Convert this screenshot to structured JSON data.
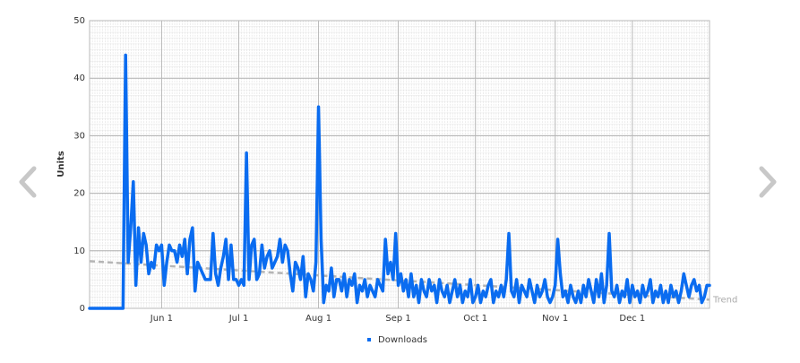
{
  "chart_data": {
    "type": "line",
    "y_label": "Units",
    "categories": [
      null,
      null,
      null,
      null,
      null,
      null,
      null,
      null,
      null,
      null,
      null,
      null,
      null,
      null,
      null,
      null,
      null,
      null,
      null,
      null,
      null,
      null,
      null,
      null,
      null,
      null,
      null,
      null,
      "Jun 1",
      null,
      null,
      null,
      null,
      null,
      null,
      null,
      null,
      null,
      null,
      null,
      null,
      null,
      null,
      null,
      null,
      null,
      null,
      null,
      null,
      null,
      null,
      null,
      null,
      null,
      null,
      null,
      null,
      null,
      "Jul 1",
      null,
      null,
      null,
      null,
      null,
      null,
      null,
      null,
      null,
      null,
      null,
      null,
      null,
      null,
      null,
      null,
      null,
      null,
      null,
      null,
      null,
      null,
      null,
      null,
      null,
      null,
      null,
      null,
      null,
      null,
      "Aug 1",
      null,
      null,
      null,
      null,
      null,
      null,
      null,
      null,
      null,
      null,
      null,
      null,
      null,
      null,
      null,
      null,
      null,
      null,
      null,
      null,
      null,
      null,
      null,
      null,
      null,
      null,
      null,
      null,
      null,
      null,
      "Sep 1",
      null,
      null,
      null,
      null,
      null,
      null,
      null,
      null,
      null,
      null,
      null,
      null,
      null,
      null,
      null,
      null,
      null,
      null,
      null,
      null,
      null,
      null,
      null,
      null,
      null,
      null,
      null,
      null,
      null,
      "Oct 1",
      null,
      null,
      null,
      null,
      null,
      null,
      null,
      null,
      null,
      null,
      null,
      null,
      null,
      null,
      null,
      null,
      null,
      null,
      null,
      null,
      null,
      null,
      null,
      null,
      null,
      null,
      null,
      null,
      null,
      null,
      "Nov 1",
      null,
      null,
      null,
      null,
      null,
      null,
      null,
      null,
      null,
      null,
      null,
      null,
      null,
      null,
      null,
      null,
      null,
      null,
      null,
      null,
      null,
      null,
      null,
      null,
      null,
      null,
      null,
      null,
      null,
      "Dec 1",
      null,
      null,
      null,
      null,
      null,
      null,
      null,
      null,
      null,
      null,
      null,
      null,
      null,
      null,
      null,
      null,
      null,
      null,
      null,
      null,
      null,
      null,
      null,
      null,
      null,
      null,
      null,
      null,
      null,
      null
    ],
    "series": [
      {
        "name": "Downloads",
        "color": "#0a6cf0",
        "values": [
          0,
          0,
          0,
          0,
          0,
          0,
          0,
          0,
          0,
          0,
          0,
          0,
          0,
          0,
          44,
          8,
          14,
          22,
          4,
          14,
          8,
          13,
          11,
          6,
          8,
          7,
          11,
          10,
          11,
          4,
          8,
          11,
          10,
          10,
          8,
          11,
          9,
          12,
          6,
          12,
          14,
          3,
          8,
          7,
          6,
          5,
          5,
          5,
          13,
          6,
          4,
          7,
          9,
          12,
          5,
          11,
          5,
          5,
          4,
          5,
          4,
          27,
          5,
          11,
          12,
          5,
          6,
          11,
          7,
          9,
          10,
          7,
          8,
          9,
          12,
          8,
          11,
          10,
          6,
          3,
          8,
          7,
          5,
          9,
          2,
          6,
          5,
          3,
          8,
          35,
          12,
          1,
          4,
          3,
          7,
          2,
          5,
          5,
          3,
          6,
          2,
          5,
          4,
          6,
          1,
          4,
          3,
          5,
          2,
          4,
          3,
          2,
          5,
          4,
          3,
          12,
          6,
          8,
          5,
          13,
          4,
          6,
          3,
          5,
          2,
          6,
          2,
          4,
          1,
          5,
          3,
          2,
          5,
          3,
          4,
          1,
          5,
          3,
          2,
          4,
          1,
          3,
          5,
          2,
          4,
          1,
          3,
          2,
          5,
          1,
          2,
          4,
          1,
          3,
          2,
          4,
          5,
          1,
          3,
          2,
          4,
          2,
          5,
          13,
          3,
          2,
          5,
          1,
          4,
          3,
          2,
          5,
          3,
          1,
          4,
          2,
          3,
          5,
          2,
          1,
          2,
          4,
          12,
          6,
          2,
          3,
          1,
          4,
          2,
          1,
          3,
          1,
          4,
          2,
          5,
          3,
          1,
          5,
          2,
          6,
          1,
          4,
          13,
          3,
          2,
          4,
          1,
          3,
          2,
          5,
          1,
          4,
          2,
          3,
          1,
          4,
          2,
          3,
          5,
          1,
          3,
          2,
          4,
          1,
          3,
          1,
          4,
          2,
          3,
          1,
          3,
          6,
          4,
          2,
          4,
          5,
          3,
          4,
          1,
          2,
          4,
          4
        ]
      }
    ],
    "trend_line": {
      "label": "Trend",
      "start": 8.2,
      "end": 1.5,
      "color": "#b5b5b5"
    },
    "ylim": [
      0,
      50
    ],
    "yticks": [
      0,
      10,
      20,
      30,
      40,
      50
    ],
    "grid": true,
    "legend": "bottom"
  }
}
